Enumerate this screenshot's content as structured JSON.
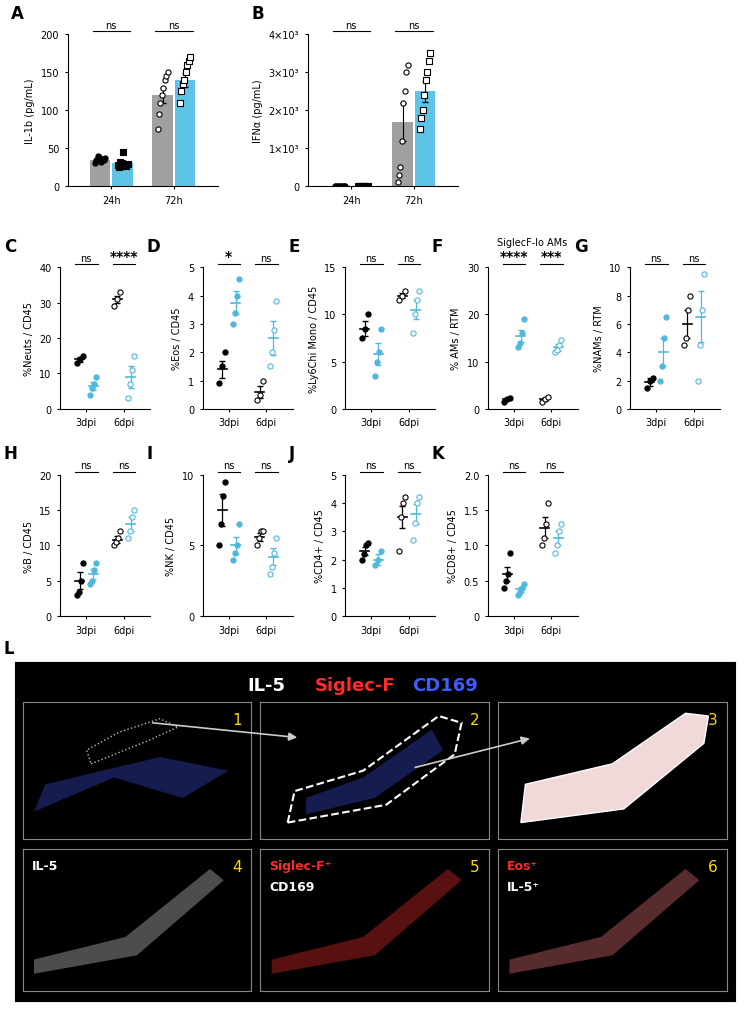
{
  "chart_data": [
    {
      "panel": "A",
      "type": "bar",
      "y_label": "IL-1b (pg/mL)",
      "categories": [
        "24h",
        "72h"
      ],
      "ylim": [
        0,
        200
      ],
      "yticks": [
        0,
        50,
        100,
        150,
        200
      ],
      "significance": [
        "ns",
        "ns"
      ],
      "series": [
        {
          "color": "#a0a0a0",
          "marker": "circle",
          "values": [
            35,
            120
          ],
          "error": [
            3,
            10
          ],
          "points": [
            [
              30,
              35,
              40,
              38,
              32,
              36,
              34,
              37
            ],
            [
              75,
              95,
              110,
              120,
              130,
              140,
              145,
              150
            ]
          ]
        },
        {
          "color": "#5ec4e6",
          "marker": "square",
          "values": [
            30,
            140
          ],
          "error": [
            3,
            9
          ],
          "points": [
            [
              28,
              25,
              32,
              30,
              45,
              27,
              26,
              29
            ],
            [
              110,
              125,
              135,
              140,
              150,
              160,
              165,
              170
            ]
          ]
        }
      ]
    },
    {
      "panel": "B",
      "type": "bar",
      "y_label": "IFNα (pg/mL)",
      "categories": [
        "24h",
        "72h"
      ],
      "ylim": [
        0,
        4000
      ],
      "yticks": [
        0,
        {
          "value": 1000,
          "label": "1×10³"
        },
        {
          "value": 2000,
          "label": "2×10³"
        },
        {
          "value": 3000,
          "label": "3×10³"
        },
        {
          "value": 4000,
          "label": "4×10³"
        }
      ],
      "significance": [
        "ns",
        "ns"
      ],
      "series": [
        {
          "color": "#a0a0a0",
          "marker": "circle",
          "values": [
            0,
            1700
          ],
          "error": [
            0,
            500
          ],
          "points": [
            [
              0,
              0,
              0,
              0,
              0,
              0,
              0,
              0
            ],
            [
              100,
              300,
              500,
              1200,
              2200,
              2500,
              3000,
              3200
            ]
          ]
        },
        {
          "color": "#5ec4e6",
          "marker": "square",
          "values": [
            0,
            2500
          ],
          "error": [
            0,
            280
          ],
          "points": [
            [
              0,
              0,
              0,
              0,
              0,
              0,
              0,
              0
            ],
            [
              1500,
              1800,
              2000,
              2400,
              2800,
              3000,
              3300,
              3500
            ]
          ]
        }
      ]
    },
    {
      "panel": "C",
      "type": "scatter",
      "y_label": "%Neuts / CD45",
      "categories": [
        "3dpi",
        "6dpi"
      ],
      "ylim": [
        0,
        40
      ],
      "yticks": [
        0,
        10,
        20,
        30,
        40
      ],
      "significance": [
        "ns",
        "****"
      ],
      "series": [
        {
          "color": "#000000",
          "values": [
            14,
            31
          ],
          "error": [
            0.7,
            1
          ],
          "points": [
            [
              13,
              14,
              15
            ],
            [
              29,
              31,
              33
            ]
          ]
        },
        {
          "color": "#4fb8dc",
          "values": [
            6.5,
            9
          ],
          "error": [
            1.2,
            3
          ],
          "points": [
            [
              4,
              6,
              7,
              9
            ],
            [
              3,
              7,
              11,
              15
            ]
          ]
        }
      ]
    },
    {
      "panel": "D",
      "type": "scatter",
      "y_label": "%Eos / CD45",
      "categories": [
        "3dpi",
        "6dpi"
      ],
      "ylim": [
        0,
        5
      ],
      "yticks": [
        0,
        1,
        2,
        3,
        4,
        5
      ],
      "significance": [
        "*",
        "ns"
      ],
      "series": [
        {
          "color": "#000000",
          "values": [
            1.4,
            0.6
          ],
          "error": [
            0.3,
            0.2
          ],
          "points": [
            [
              0.9,
              1.5,
              2.0
            ],
            [
              0.3,
              0.5,
              1.0
            ]
          ]
        },
        {
          "color": "#4fb8dc",
          "values": [
            3.75,
            2.5
          ],
          "error": [
            0.4,
            0.6
          ],
          "points": [
            [
              3,
              3.4,
              4,
              4.6
            ],
            [
              1.5,
              2,
              2.8,
              3.8
            ]
          ]
        }
      ]
    },
    {
      "panel": "E",
      "type": "scatter",
      "y_label": "%Ly6Chi Mono / CD45",
      "categories": [
        "3dpi",
        "6dpi"
      ],
      "ylim": [
        0,
        15
      ],
      "yticks": [
        0,
        5,
        10,
        15
      ],
      "significance": [
        "ns",
        "ns"
      ],
      "series": [
        {
          "color": "#000000",
          "values": [
            8.5,
            12
          ],
          "error": [
            0.8,
            0.3
          ],
          "points": [
            [
              7.5,
              8.5,
              10
            ],
            [
              11.5,
              12,
              12.5
            ]
          ]
        },
        {
          "color": "#4fb8dc",
          "values": [
            5.8,
            10.5
          ],
          "error": [
            1.2,
            1
          ],
          "points": [
            [
              3.5,
              5,
              6,
              8.5
            ],
            [
              8,
              10,
              11.5,
              12.5
            ]
          ]
        }
      ]
    },
    {
      "panel": "F",
      "type": "scatter",
      "title": "SiglecF-lo AMs",
      "y_label": "% AMs / RTM",
      "categories": [
        "3dpi",
        "6dpi"
      ],
      "ylim": [
        0,
        30
      ],
      "yticks": [
        0,
        10,
        20,
        30
      ],
      "significance": [
        "****",
        "***"
      ],
      "series": [
        {
          "color": "#000000",
          "values": [
            2,
            2
          ],
          "error": [
            0.2,
            0.3
          ],
          "points": [
            [
              1.5,
              2,
              2.2
            ],
            [
              1.5,
              2,
              2.5
            ]
          ]
        },
        {
          "color": "#4fb8dc",
          "values": [
            15.5,
            13
          ],
          "error": [
            1.3,
            0.8
          ],
          "points": [
            [
              13,
              14,
              16,
              19
            ],
            [
              12,
              12.5,
              13.5,
              14.5
            ]
          ]
        }
      ]
    },
    {
      "panel": "G",
      "type": "scatter",
      "y_label": "%NAMs / RTM",
      "categories": [
        "3dpi",
        "6dpi"
      ],
      "ylim": [
        0,
        10
      ],
      "yticks": [
        0,
        2,
        4,
        6,
        8,
        10
      ],
      "significance": [
        "ns",
        "ns"
      ],
      "series": [
        {
          "color": "#000000",
          "values": [
            1.9,
            6
          ],
          "error": [
            0.3,
            1
          ],
          "points": [
            [
              1.5,
              2,
              2.2
            ],
            [
              4.5,
              5,
              7,
              8
            ]
          ]
        },
        {
          "color": "#4fb8dc",
          "values": [
            4,
            6.5
          ],
          "error": [
            1,
            1.8
          ],
          "points": [
            [
              2,
              3,
              5,
              6.5
            ],
            [
              2,
              4.5,
              7,
              9.5
            ]
          ]
        }
      ]
    },
    {
      "panel": "H",
      "type": "scatter",
      "y_label": "%B / CD45",
      "categories": [
        "3dpi",
        "6dpi"
      ],
      "ylim": [
        0,
        20
      ],
      "yticks": [
        0,
        5,
        10,
        15,
        20
      ],
      "significance": [
        "ns",
        "ns"
      ],
      "series": [
        {
          "color": "#000000",
          "values": [
            5,
            10.8
          ],
          "error": [
            1.2,
            0.5
          ],
          "points": [
            [
              3,
              3.5,
              5,
              7.5
            ],
            [
              10,
              10.5,
              11,
              12
            ]
          ]
        },
        {
          "color": "#4fb8dc",
          "values": [
            6,
            13
          ],
          "error": [
            0.7,
            1
          ],
          "points": [
            [
              4.5,
              5,
              6.5,
              7.5
            ],
            [
              11,
              12,
              14,
              15
            ]
          ]
        }
      ]
    },
    {
      "panel": "I",
      "type": "scatter",
      "y_label": "%NK / CD45",
      "categories": [
        "3dpi",
        "6dpi"
      ],
      "ylim": [
        0,
        10
      ],
      "yticks": [
        0,
        5,
        10
      ],
      "significance": [
        "ns",
        "ns"
      ],
      "series": [
        {
          "color": "#000000",
          "values": [
            7.5,
            5.6
          ],
          "error": [
            1.1,
            0.3
          ],
          "points": [
            [
              5,
              6.5,
              8.5,
              9.5
            ],
            [
              5,
              5.5,
              6,
              6
            ]
          ]
        },
        {
          "color": "#4fb8dc",
          "values": [
            5,
            4.2
          ],
          "error": [
            0.6,
            0.6
          ],
          "points": [
            [
              4,
              4.5,
              5,
              6.5
            ],
            [
              3,
              3.5,
              4.5,
              5.5
            ]
          ]
        }
      ]
    },
    {
      "panel": "J",
      "type": "scatter",
      "y_label": "%CD4+ / CD45",
      "categories": [
        "3dpi",
        "6dpi"
      ],
      "ylim": [
        0,
        5
      ],
      "yticks": [
        0,
        1,
        2,
        3,
        4,
        5
      ],
      "significance": [
        "ns",
        "ns"
      ],
      "series": [
        {
          "color": "#000000",
          "values": [
            2.3,
            3.5
          ],
          "error": [
            0.15,
            0.4
          ],
          "points": [
            [
              2,
              2.2,
              2.5,
              2.6
            ],
            [
              2.3,
              3.5,
              4,
              4.2
            ]
          ]
        },
        {
          "color": "#4fb8dc",
          "values": [
            2,
            3.6
          ],
          "error": [
            0.2,
            0.35
          ],
          "points": [
            [
              1.8,
              2,
              2.3
            ],
            [
              2.7,
              3.3,
              4,
              4.2
            ]
          ]
        }
      ]
    },
    {
      "panel": "K",
      "type": "scatter",
      "y_label": "%CD8+ / CD45",
      "categories": [
        "3dpi",
        "6dpi"
      ],
      "ylim": [
        0,
        2.0
      ],
      "yticks": [
        0,
        0.5,
        1.0,
        1.5,
        2.0
      ],
      "significance": [
        "ns",
        "ns"
      ],
      "series": [
        {
          "color": "#000000",
          "values": [
            0.6,
            1.25
          ],
          "error": [
            0.1,
            0.15
          ],
          "points": [
            [
              0.4,
              0.5,
              0.6,
              0.9
            ],
            [
              1.0,
              1.1,
              1.3,
              1.6
            ]
          ]
        },
        {
          "color": "#4fb8dc",
          "values": [
            0.38,
            1.1
          ],
          "error": [
            0.04,
            0.1
          ],
          "points": [
            [
              0.3,
              0.35,
              0.4,
              0.45
            ],
            [
              0.9,
              1.0,
              1.2,
              1.3
            ]
          ]
        }
      ]
    }
  ],
  "image_panel": {
    "panel": "L",
    "header": [
      "IL-5",
      "Siglec-F",
      "CD169"
    ],
    "tiles": [
      {
        "number": "1",
        "labels": []
      },
      {
        "number": "2",
        "labels": []
      },
      {
        "number": "3",
        "labels": []
      },
      {
        "number": "4",
        "labels": [
          "IL-5"
        ]
      },
      {
        "number": "5",
        "labels": [
          "Siglec-F⁺",
          "CD169"
        ]
      },
      {
        "number": "6",
        "labels": [
          "Eos⁺",
          "IL-5⁺"
        ]
      }
    ]
  }
}
